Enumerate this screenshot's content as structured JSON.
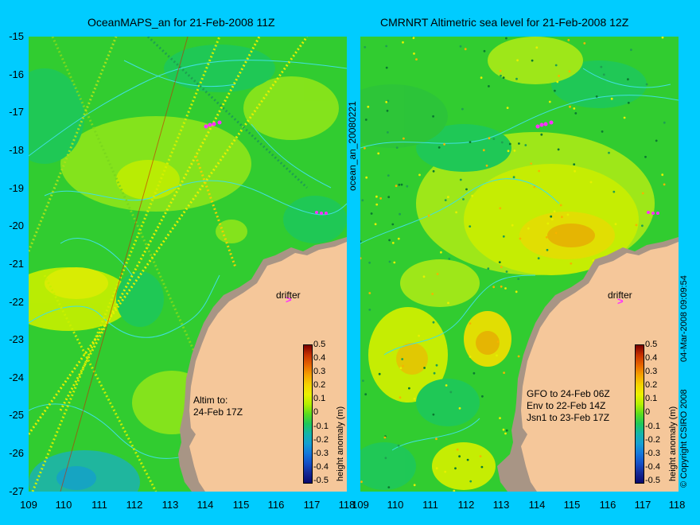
{
  "left_panel": {
    "title": "OceanMAPS_an for 21-Feb-2008 11Z",
    "annotation_lines": [
      "Altim to:",
      "24-Feb 17Z"
    ],
    "drifter_label": "drifter"
  },
  "right_panel": {
    "title": "CMRNRT Altimetric sea level  for 21-Feb-2008 12Z",
    "annotation_lines": [
      "GFO to 24-Feb 06Z",
      "Env to 22-Feb 14Z",
      "Jsn1 to 23-Feb 17Z"
    ],
    "drifter_label": "drifter"
  },
  "side_label": "ocean_an_20080221",
  "timestamp": "04-Mar-2008 09:09:54",
  "copyright": "© Copyright CSIRO 2008",
  "colorbar": {
    "label": "height anomaly (m)",
    "ticks": [
      "0.5",
      "0.4",
      "0.3",
      "0.2",
      "0.1",
      "0",
      "-0.1",
      "-0.2",
      "-0.3",
      "-0.4",
      "-0.5"
    ],
    "colors": [
      "#7a0000",
      "#c83200",
      "#e66400",
      "#f5a000",
      "#f5d200",
      "#ebf000",
      "#b4f000",
      "#5adc1e",
      "#1ec85a",
      "#14b4aa",
      "#14a0d2",
      "#1478dc",
      "#1450c8",
      "#142896",
      "#0a0a6e"
    ]
  },
  "axes": {
    "y_ticks": [
      "-15",
      "-16",
      "-17",
      "-18",
      "-19",
      "-20",
      "-21",
      "-22",
      "-23",
      "-24",
      "-25",
      "-26",
      "-27"
    ],
    "x_ticks": [
      "109",
      "110",
      "111",
      "112",
      "113",
      "114",
      "115",
      "116",
      "117",
      "118"
    ]
  },
  "colors": {
    "background": "#00ccff",
    "land": "#f5c79a",
    "coast": "#a89585",
    "contour": "#40e0e0"
  }
}
